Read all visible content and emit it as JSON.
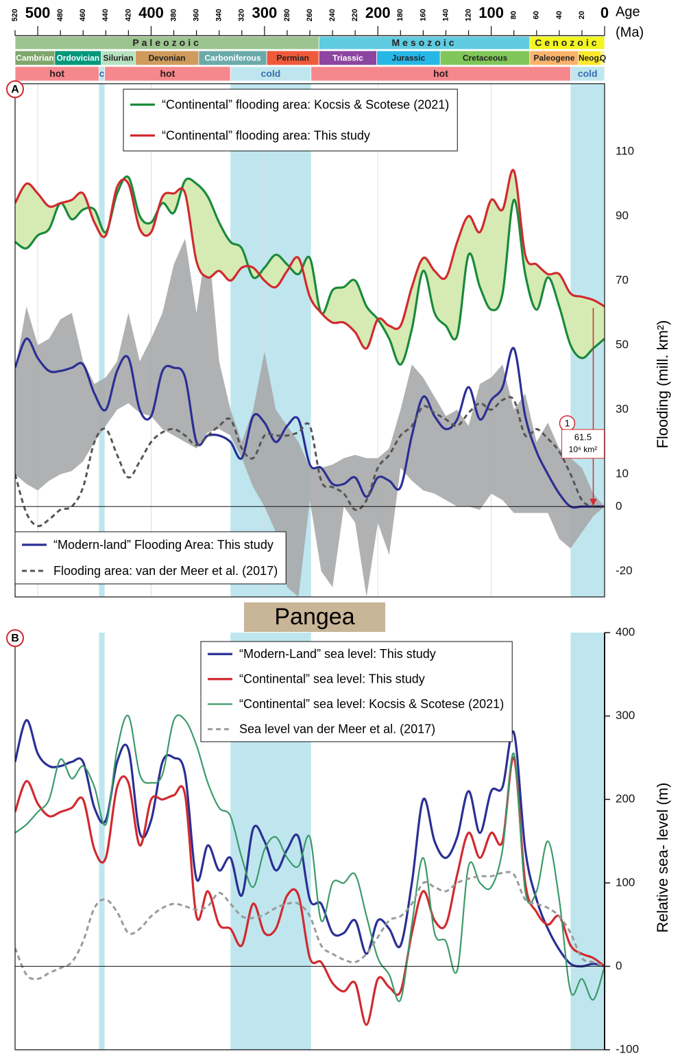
{
  "timescale": {
    "xlabel": "Age",
    "unit": "(Ma)",
    "xlim": [
      520,
      0
    ],
    "xticks": [
      520,
      500,
      480,
      460,
      440,
      420,
      400,
      380,
      360,
      340,
      320,
      300,
      280,
      260,
      240,
      220,
      200,
      180,
      160,
      140,
      120,
      100,
      80,
      60,
      40,
      20,
      0
    ],
    "eras": [
      {
        "name": "Paleozoic",
        "start": 520,
        "end": 252,
        "color": "#9cc48f"
      },
      {
        "name": "Mesozoic",
        "start": 252,
        "end": 66,
        "color": "#5fcbe0"
      },
      {
        "name": "Cenozoic",
        "start": 66,
        "end": 0,
        "color": "#f2f51f"
      }
    ],
    "periods": [
      {
        "name": "Cambrian",
        "start": 520,
        "end": 485,
        "color": "#7fa56b",
        "text_color": "#ffffff"
      },
      {
        "name": "Ordovician",
        "start": 485,
        "end": 444,
        "color": "#00977a",
        "text_color": "#ffffff"
      },
      {
        "name": "Silurian",
        "start": 444,
        "end": 414,
        "color": "#b6e2c2",
        "text_color": "#222222"
      },
      {
        "name": "Devonian",
        "start": 414,
        "end": 358,
        "color": "#cf9b5c",
        "text_color": "#222222"
      },
      {
        "name": "Carboniferous",
        "start": 358,
        "end": 298,
        "color": "#6aabaa",
        "text_color": "#ffffff"
      },
      {
        "name": "Permian",
        "start": 298,
        "end": 252,
        "color": "#ef5a3a",
        "text_color": "#222222"
      },
      {
        "name": "Triassic",
        "start": 252,
        "end": 201,
        "color": "#8c45a0",
        "text_color": "#ffffff"
      },
      {
        "name": "Jurassic",
        "start": 201,
        "end": 145,
        "color": "#27b7e6",
        "text_color": "#222222"
      },
      {
        "name": "Cretaceous",
        "start": 145,
        "end": 66,
        "color": "#80c659",
        "text_color": "#222222"
      },
      {
        "name": "Paleogene",
        "start": 66,
        "end": 23,
        "color": "#fbb36b",
        "text_color": "#222222"
      },
      {
        "name": "Neog.",
        "start": 23,
        "end": 3,
        "color": "#fde92d",
        "text_color": "#222222"
      },
      {
        "name": "Q",
        "start": 3,
        "end": 0,
        "color": "#fbf48e",
        "text_color": "#222222"
      }
    ],
    "climate": [
      {
        "name": "hot",
        "start": 520,
        "end": 446,
        "color": "#f5888d",
        "text_color": "#2b1a1a"
      },
      {
        "name": "c",
        "start": 446,
        "end": 441,
        "color": "#bfe6ee",
        "text_color": "#3a6db0"
      },
      {
        "name": "hot",
        "start": 441,
        "end": 330,
        "color": "#f5888d",
        "text_color": "#2b1a1a"
      },
      {
        "name": "cold",
        "start": 330,
        "end": 259,
        "color": "#bfe6ee",
        "text_color": "#3a6db0"
      },
      {
        "name": "hot",
        "start": 259,
        "end": 30,
        "color": "#f5888d",
        "text_color": "#2b1a1a"
      },
      {
        "name": "cold",
        "start": 30,
        "end": 0,
        "color": "#bfe6ee",
        "text_color": "#3a6db0"
      }
    ]
  },
  "divider": {
    "label": "Pangea",
    "color": "#c9b597"
  },
  "chart_data": [
    {
      "type": "line",
      "panel": "A",
      "ylabel": "Flooding  (mill. km²)",
      "xlim": [
        520,
        0
      ],
      "ylim": [
        -28,
        131
      ],
      "yticks": [
        -20,
        0,
        10,
        30,
        50,
        70,
        90,
        110
      ],
      "grid": true,
      "band_color": "#bfe6ee",
      "fill_between_color": "#d5ebb3",
      "x": [
        520,
        510,
        500,
        490,
        480,
        470,
        460,
        450,
        440,
        430,
        420,
        410,
        400,
        390,
        380,
        370,
        360,
        350,
        340,
        330,
        320,
        310,
        300,
        290,
        280,
        270,
        260,
        250,
        240,
        230,
        220,
        210,
        200,
        190,
        180,
        170,
        160,
        150,
        140,
        130,
        120,
        110,
        100,
        90,
        80,
        70,
        60,
        50,
        40,
        30,
        20,
        10,
        0
      ],
      "range": {
        "color": "#a7a8aa",
        "upper": [
          42,
          62,
          50,
          52,
          58,
          60,
          45,
          38,
          40,
          45,
          60,
          45,
          52,
          60,
          75,
          83,
          60,
          84,
          45,
          30,
          20,
          30,
          48,
          30,
          25,
          20,
          12,
          12,
          13,
          15,
          16,
          15,
          15,
          18,
          30,
          44,
          40,
          34,
          28,
          30,
          25,
          38,
          40,
          44,
          30,
          35,
          20,
          26,
          18,
          15,
          12,
          4,
          0
        ],
        "lower": [
          10,
          7,
          5,
          8,
          10,
          11,
          14,
          20,
          25,
          30,
          32,
          29,
          28,
          24,
          22,
          20,
          18,
          23,
          24,
          22,
          15,
          6,
          0,
          -8,
          -25,
          -28,
          2,
          -20,
          -25,
          0,
          -5,
          -28,
          -5,
          -15,
          12,
          8,
          5,
          4,
          2,
          0,
          0,
          -1,
          4,
          2,
          -2,
          -2,
          -2,
          -2,
          -10,
          -13,
          -8,
          -3,
          0
        ]
      },
      "series": [
        {
          "name": "“Continental” flooding area: Kocsis & Scotese (2021)",
          "color": "#1a8a3c",
          "style": "solid",
          "legend": "top",
          "values": [
            82,
            80,
            84,
            86,
            94,
            89,
            92,
            92,
            85,
            97,
            102,
            90,
            88,
            94,
            91,
            101,
            100,
            96,
            88,
            82,
            80,
            71,
            74,
            78,
            75,
            72,
            77,
            60,
            67,
            68,
            70,
            62,
            58,
            52,
            44,
            55,
            73,
            60,
            56,
            53,
            78,
            68,
            61,
            66,
            95,
            72,
            61,
            71,
            62,
            50,
            46,
            49,
            52
          ]
        },
        {
          "name": "“Continental”  flooding area: This study",
          "color": "#d12a2f",
          "style": "solid",
          "legend": "top",
          "values": [
            94,
            100,
            97,
            93,
            94,
            95,
            97,
            88,
            84,
            99,
            100,
            86,
            85,
            96,
            97,
            97,
            76,
            71,
            73,
            70,
            74,
            74,
            70,
            68,
            73,
            77,
            65,
            60,
            57,
            57,
            54,
            49,
            58,
            56,
            56,
            68,
            77,
            73,
            71,
            82,
            90,
            85,
            95,
            92,
            104,
            78,
            75,
            72,
            72,
            66,
            65,
            64,
            62
          ]
        },
        {
          "name": "“Modern-land”  Flooding Area: This study",
          "color": "#2b2f94",
          "style": "solid",
          "legend": "bottom-left",
          "values": [
            43,
            52,
            46,
            42,
            42,
            43,
            44,
            35,
            30,
            42,
            46,
            30,
            28,
            42,
            43,
            40,
            20,
            22,
            22,
            20,
            15,
            28,
            26,
            20,
            25,
            27,
            13,
            12,
            7,
            7,
            9,
            3,
            9,
            8,
            6,
            22,
            34,
            28,
            24,
            27,
            37,
            27,
            33,
            37,
            49,
            28,
            17,
            10,
            4,
            0,
            0,
            0,
            0
          ]
        },
        {
          "name": "Flooding area: van der Meer et al. (2017)",
          "color": "#555555",
          "style": "dashed",
          "legend": "bottom-left",
          "values": [
            10,
            -2,
            -6,
            -4,
            -1,
            0,
            6,
            20,
            24,
            16,
            9,
            14,
            20,
            23,
            24,
            22,
            19,
            22,
            25,
            27,
            18,
            15,
            22,
            22,
            22,
            23,
            25,
            8,
            6,
            4,
            -1,
            2,
            12,
            16,
            22,
            25,
            31,
            29,
            27,
            25,
            29,
            32,
            30,
            33,
            33,
            22,
            24,
            21,
            17,
            10,
            2,
            0,
            0
          ]
        }
      ],
      "annotation": {
        "label": "1",
        "value": 61.5,
        "unit": "10⁶ km²",
        "x": 10,
        "color": "#d12a2f"
      }
    },
    {
      "type": "line",
      "panel": "B",
      "ylabel": "Relative sea- level (m)",
      "xlim": [
        520,
        0
      ],
      "ylim": [
        -100,
        400
      ],
      "yticks": [
        -100,
        0,
        100,
        200,
        300,
        400
      ],
      "band_color": "#bfe6ee",
      "x": [
        520,
        510,
        500,
        490,
        480,
        470,
        460,
        450,
        440,
        430,
        420,
        410,
        400,
        390,
        380,
        370,
        360,
        350,
        340,
        330,
        320,
        310,
        300,
        290,
        280,
        270,
        260,
        250,
        240,
        230,
        220,
        210,
        200,
        190,
        180,
        170,
        160,
        150,
        140,
        130,
        120,
        110,
        100,
        90,
        80,
        70,
        60,
        50,
        40,
        30,
        20,
        10,
        0
      ],
      "series": [
        {
          "name": "“Modern-Land” sea level: This study",
          "color": "#2b2f94",
          "style": "solid",
          "legend": "top",
          "values": [
            245,
            295,
            255,
            240,
            240,
            245,
            245,
            190,
            175,
            245,
            260,
            160,
            175,
            245,
            250,
            230,
            105,
            145,
            115,
            130,
            85,
            165,
            150,
            115,
            140,
            155,
            80,
            75,
            40,
            40,
            55,
            15,
            55,
            45,
            25,
            100,
            200,
            150,
            130,
            155,
            210,
            160,
            210,
            215,
            280,
            140,
            80,
            45,
            20,
            3,
            0,
            3,
            0
          ]
        },
        {
          "name": "“Continental” sea level: This study",
          "color": "#d12a2f",
          "style": "solid",
          "legend": "top",
          "values": [
            185,
            222,
            195,
            180,
            185,
            190,
            200,
            140,
            130,
            215,
            220,
            145,
            200,
            200,
            205,
            205,
            60,
            90,
            50,
            45,
            25,
            75,
            40,
            45,
            85,
            85,
            10,
            5,
            -20,
            -30,
            -20,
            -70,
            -15,
            -25,
            -30,
            40,
            90,
            55,
            50,
            110,
            160,
            130,
            160,
            150,
            250,
            100,
            65,
            50,
            60,
            25,
            15,
            10,
            0
          ]
        },
        {
          "name": "“Continental” sea level: Kocsis & Scotese (2021)",
          "color": "#3a9a6a",
          "style": "thin",
          "legend": "top",
          "values": [
            160,
            170,
            185,
            200,
            248,
            225,
            240,
            215,
            170,
            260,
            300,
            230,
            220,
            230,
            295,
            295,
            265,
            220,
            190,
            180,
            130,
            95,
            140,
            155,
            130,
            120,
            155,
            55,
            100,
            100,
            110,
            60,
            10,
            -10,
            -40,
            50,
            130,
            40,
            30,
            -5,
            120,
            100,
            95,
            140,
            255,
            90,
            90,
            150,
            80,
            -30,
            -15,
            -40,
            0
          ]
        },
        {
          "name": "Sea level  van der Meer et al. (2017)",
          "color": "#9a9a9a",
          "style": "dashed",
          "legend": "top",
          "values": [
            22,
            -10,
            -15,
            -8,
            -2,
            5,
            30,
            70,
            80,
            65,
            40,
            45,
            60,
            70,
            75,
            72,
            68,
            72,
            88,
            75,
            60,
            58,
            62,
            70,
            75,
            75,
            60,
            25,
            15,
            8,
            5,
            15,
            35,
            55,
            60,
            75,
            100,
            95,
            90,
            100,
            105,
            108,
            108,
            112,
            110,
            80,
            75,
            70,
            60,
            40,
            10,
            5,
            0
          ]
        }
      ]
    }
  ]
}
